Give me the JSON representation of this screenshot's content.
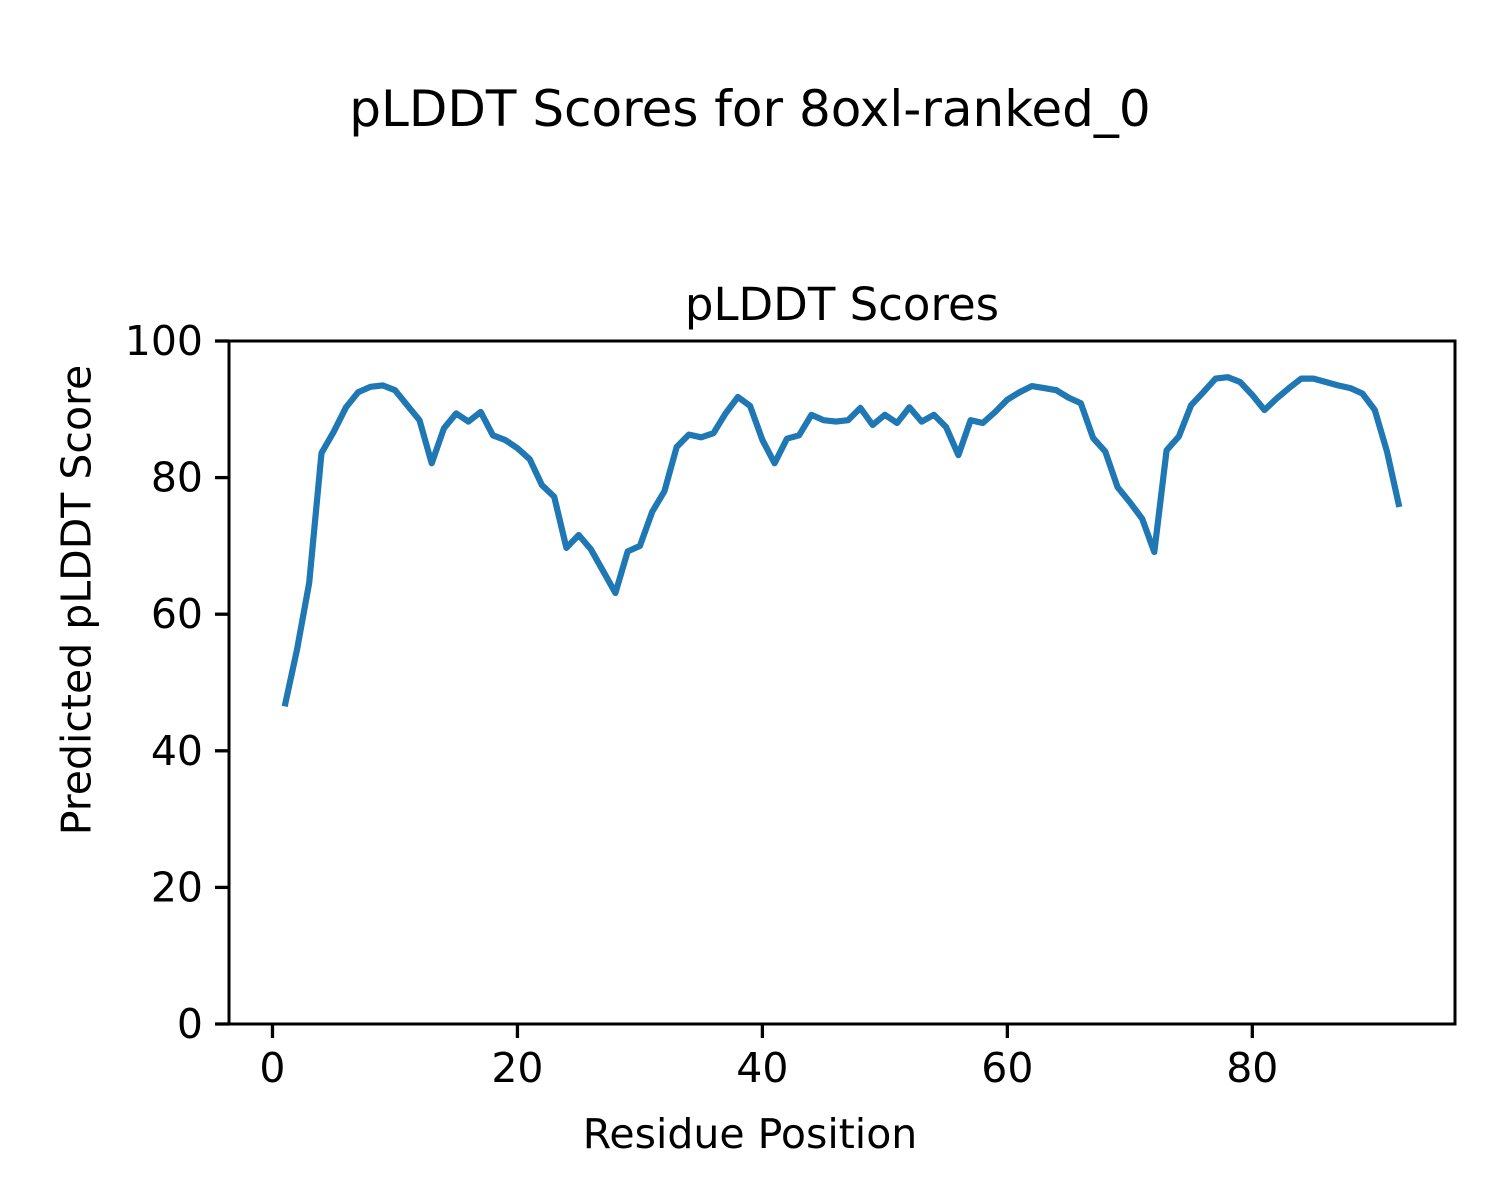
{
  "figure_title": "pLDDT Scores for 8oxl-ranked_0",
  "chart_data": {
    "type": "line",
    "title": "pLDDT Scores",
    "xlabel": "Residue Position",
    "ylabel": "Predicted pLDDT Score",
    "xlim": [
      -3.55,
      96.55
    ],
    "ylim": [
      0,
      100
    ],
    "xticks": [
      0,
      20,
      40,
      60,
      80
    ],
    "yticks": [
      0,
      20,
      40,
      60,
      80,
      100
    ],
    "grid": false,
    "legend": "none",
    "background_color": "#ffffff",
    "line_color": "#1f77b4",
    "series": [
      {
        "name": "pLDDT",
        "x": [
          1,
          2,
          3,
          4,
          5,
          6,
          7,
          8,
          9,
          10,
          11,
          12,
          13,
          14,
          15,
          16,
          17,
          18,
          19,
          20,
          21,
          22,
          23,
          24,
          25,
          26,
          27,
          28,
          29,
          30,
          31,
          32,
          33,
          34,
          35,
          36,
          37,
          38,
          39,
          40,
          41,
          42,
          43,
          44,
          45,
          46,
          47,
          48,
          49,
          50,
          51,
          52,
          53,
          54,
          55,
          56,
          57,
          58,
          59,
          60,
          61,
          62,
          63,
          64,
          65,
          66,
          67,
          68,
          69,
          70,
          71,
          72,
          73,
          74,
          75,
          76,
          77,
          78,
          79,
          80,
          81,
          82,
          83,
          84,
          85,
          86,
          87,
          88,
          89,
          90,
          91,
          92
        ],
        "values": [
          46.5,
          54.8,
          64.6,
          83.6,
          86.7,
          90.3,
          92.5,
          93.3,
          93.5,
          92.8,
          90.6,
          88.4,
          82.1,
          87.2,
          89.4,
          88.2,
          89.6,
          86.2,
          85.5,
          84.3,
          82.7,
          78.9,
          77.2,
          69.7,
          71.6,
          69.5,
          66.3,
          63.1,
          69.2,
          70.0,
          75.0,
          78.0,
          84.5,
          86.3,
          85.9,
          86.5,
          89.4,
          91.8,
          90.5,
          85.5,
          82.1,
          85.7,
          86.2,
          89.2,
          88.4,
          88.2,
          88.4,
          90.2,
          87.7,
          89.2,
          88.0,
          90.3,
          88.2,
          89.2,
          87.4,
          83.3,
          88.4,
          88.0,
          89.6,
          91.4,
          92.5,
          93.4,
          93.1,
          92.8,
          91.7,
          90.9,
          85.8,
          83.8,
          78.6,
          76.4,
          74.0,
          69.1,
          84.0,
          86.0,
          90.6,
          92.5,
          94.5,
          94.7,
          94.0,
          92.1,
          89.9,
          91.6,
          93.1,
          94.5,
          94.5,
          94.0,
          93.5,
          93.1,
          92.3,
          89.9,
          83.8,
          75.7
        ]
      }
    ]
  }
}
